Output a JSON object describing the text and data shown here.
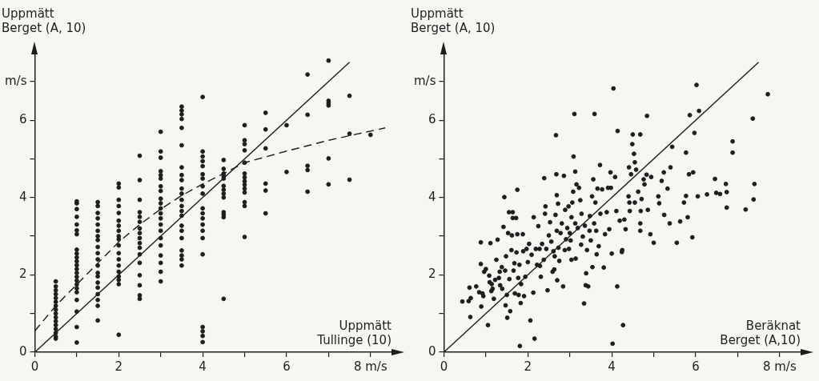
{
  "chart_data": [
    {
      "type": "scatter",
      "xlabel": "Uppmätt Tullinge (10)",
      "ylabel": "Uppmätt Berget (A, 10)",
      "xlim": [
        0,
        8.5
      ],
      "ylim": [
        0,
        7.7
      ],
      "xticks": [
        0,
        {
          "value": 1,
          "label": null
        },
        2,
        {
          "value": 3,
          "label": null
        },
        4,
        {
          "value": 5,
          "label": null
        },
        6,
        {
          "value": 7,
          "label": null
        },
        {
          "value": 8,
          "label": "8 m/s"
        }
      ],
      "yticks": [
        0,
        {
          "value": 1,
          "label": null
        },
        2,
        {
          "value": 3,
          "label": null
        },
        4,
        {
          "value": 5,
          "label": null
        },
        6,
        {
          "value": 7,
          "label": "m/s"
        }
      ],
      "series": [
        {
          "type": "scatter",
          "color": "#1e1e1e",
          "marker": "circle",
          "x": [
            0.5,
            0.5,
            0.5,
            0.5,
            0.5,
            0.5,
            0.5,
            0.5,
            0.5,
            0.5,
            0.5,
            0.5,
            0.5,
            0.5,
            0.5,
            0.5,
            1,
            1,
            1,
            1,
            1,
            1,
            1,
            1,
            1,
            1,
            1,
            1,
            1,
            1,
            1,
            1,
            1,
            1,
            1,
            1,
            1,
            1,
            1,
            1.5,
            1.5,
            1.5,
            1.5,
            1.5,
            1.5,
            1.5,
            1.5,
            1.5,
            1.5,
            1.5,
            1.5,
            1.5,
            1.5,
            1.5,
            1.5,
            1.5,
            1.5,
            1.5,
            1.5,
            2,
            2,
            2,
            2,
            2,
            2,
            2,
            2,
            2,
            2,
            2,
            2,
            2,
            2,
            2,
            2,
            2,
            2,
            2,
            2.5,
            2.5,
            2.5,
            2.5,
            2.5,
            2.5,
            2.5,
            2.5,
            2.5,
            2.5,
            2.5,
            2.5,
            2.5,
            2.5,
            2.5,
            2.5,
            2.5,
            3,
            3,
            3,
            3,
            3,
            3,
            3,
            3,
            3,
            3,
            3,
            3,
            3,
            3,
            3,
            3,
            3,
            3,
            3,
            3,
            3,
            3.5,
            3.5,
            3.5,
            3.5,
            3.5,
            3.5,
            3.5,
            3.5,
            3.5,
            3.5,
            3.5,
            3.5,
            3.5,
            3.5,
            3.5,
            3.5,
            3.5,
            3.5,
            3.5,
            3.5,
            3.5,
            3.5,
            4,
            4,
            4,
            4,
            4,
            4,
            4,
            4,
            4,
            4,
            4,
            4,
            4,
            4,
            4,
            4,
            4,
            4,
            4,
            4,
            4.5,
            4.5,
            4.5,
            4.5,
            4.5,
            4.5,
            4.5,
            4.5,
            4.5,
            4.5,
            4.5,
            4.5,
            4.5,
            5,
            5,
            5,
            5,
            5,
            5,
            5,
            5,
            5,
            5,
            5,
            5,
            5,
            5,
            5.5,
            5.5,
            5.5,
            5.5,
            5.5,
            5.5,
            6,
            6,
            6.5,
            6.5,
            6.5,
            6.5,
            6.5,
            7,
            7,
            7,
            7,
            7,
            7,
            7.5,
            7.5,
            7.5,
            8
          ],
          "values": [
            1.83,
            1.7,
            1.6,
            1.5,
            1.4,
            1.3,
            1.2,
            1.1,
            1.0,
            0.9,
            0.8,
            0.7,
            0.6,
            0.5,
            0.4,
            0.35,
            3.9,
            3.85,
            3.7,
            3.5,
            3.3,
            3.15,
            3.05,
            2.65,
            2.55,
            2.45,
            2.35,
            2.25,
            2.15,
            2.05,
            1.95,
            1.85,
            1.75,
            1.65,
            1.55,
            1.35,
            1.05,
            0.65,
            0.25,
            3.88,
            3.78,
            3.6,
            3.46,
            3.3,
            3.14,
            3.0,
            2.9,
            2.72,
            2.56,
            2.4,
            2.24,
            2.05,
            1.96,
            1.8,
            1.67,
            1.5,
            1.35,
            1.2,
            0.82,
            4.36,
            4.26,
            3.94,
            3.78,
            3.6,
            3.4,
            3.27,
            3.14,
            3.0,
            2.92,
            2.76,
            2.56,
            2.4,
            2.24,
            2.08,
            1.96,
            1.87,
            1.76,
            0.45,
            5.08,
            4.45,
            3.94,
            3.62,
            3.5,
            3.37,
            3.2,
            3.08,
            2.95,
            2.82,
            2.7,
            2.53,
            2.31,
            1.99,
            1.73,
            1.47,
            1.38,
            5.7,
            5.19,
            5.03,
            4.68,
            4.58,
            4.49,
            4.29,
            4.17,
            3.97,
            3.85,
            3.72,
            3.59,
            3.46,
            3.3,
            3.14,
            2.95,
            2.76,
            2.5,
            2.31,
            2.08,
            1.83,
            6.35,
            6.25,
            6.15,
            6.03,
            5.8,
            5.35,
            4.78,
            4.58,
            4.45,
            4.23,
            4.1,
            3.94,
            3.78,
            3.65,
            3.53,
            3.27,
            3.14,
            2.95,
            2.63,
            2.5,
            2.4,
            2.24,
            6.6,
            5.19,
            5.06,
            4.94,
            4.81,
            4.6,
            4.49,
            4.29,
            4.1,
            3.72,
            3.59,
            3.46,
            3.3,
            3.14,
            2.95,
            2.53,
            0.65,
            0.54,
            0.42,
            0.26,
            4.97,
            4.74,
            4.62,
            4.55,
            4.49,
            4.3,
            4.2,
            4.1,
            4.0,
            3.62,
            3.56,
            3.49,
            1.38,
            5.87,
            5.48,
            5.38,
            5.22,
            4.9,
            4.62,
            4.52,
            4.42,
            4.33,
            4.23,
            4.13,
            3.88,
            3.78,
            2.98,
            6.19,
            5.76,
            5.27,
            4.36,
            4.18,
            3.59,
            5.87,
            4.66,
            7.18,
            6.14,
            4.82,
            4.71,
            4.15,
            7.54,
            6.5,
            6.44,
            6.38,
            5.01,
            4.34,
            6.63,
            5.65,
            4.46,
            5.62
          ]
        },
        {
          "type": "line",
          "color": "#1e1e1e",
          "line_style": "solid",
          "x": [
            0,
            7.5
          ],
          "values": [
            0,
            7.5
          ]
        },
        {
          "type": "line",
          "color": "#1e1e1e",
          "line_style": "dashed",
          "x": [
            0,
            0.5,
            1,
            1.5,
            2,
            2.5,
            3,
            3.5,
            4,
            4.5,
            5,
            6,
            7,
            8.35
          ],
          "values": [
            0.55,
            1.2,
            1.75,
            2.3,
            2.85,
            3.3,
            3.7,
            4.05,
            4.35,
            4.62,
            4.9,
            5.2,
            5.48,
            5.8
          ]
        }
      ]
    },
    {
      "type": "scatter",
      "xlabel": "Beräknat Berget (A,10)",
      "ylabel": "Uppmätt Berget (A, 10)",
      "xlim": [
        0,
        8.5
      ],
      "ylim": [
        0,
        7.7
      ],
      "xticks": [
        0,
        {
          "value": 1,
          "label": null
        },
        2,
        {
          "value": 3,
          "label": null
        },
        4,
        {
          "value": 5,
          "label": null
        },
        6,
        {
          "value": 7,
          "label": null
        },
        {
          "value": 8,
          "label": "8 m/s"
        }
      ],
      "yticks": [
        0,
        {
          "value": 1,
          "label": null
        },
        2,
        {
          "value": 3,
          "label": null
        },
        4,
        {
          "value": 5,
          "label": null
        },
        6,
        {
          "value": 7,
          "label": "m/s"
        }
      ],
      "series": [
        {
          "type": "scatter",
          "color": "#1e1e1e",
          "marker": "circle",
          "x": [
            0.44,
            0.59,
            0.61,
            0.63,
            0.64,
            0.77,
            0.84,
            0.88,
            0.88,
            0.89,
            0.92,
            0.94,
            0.96,
            1.0,
            1.05,
            1.08,
            1.09,
            1.11,
            1.13,
            1.14,
            1.16,
            1.19,
            1.22,
            1.25,
            1.28,
            1.31,
            1.33,
            1.34,
            1.38,
            1.39,
            1.42,
            1.44,
            1.46,
            1.47,
            1.48,
            1.5,
            1.51,
            1.53,
            1.55,
            1.56,
            1.58,
            1.61,
            1.62,
            1.64,
            1.64,
            1.66,
            1.68,
            1.69,
            1.72,
            1.73,
            1.75,
            1.75,
            1.77,
            1.78,
            1.8,
            1.81,
            1.83,
            1.84,
            1.88,
            1.89,
            1.91,
            1.94,
            1.97,
            2.0,
            2.03,
            2.06,
            2.09,
            2.13,
            2.14,
            2.16,
            2.19,
            2.22,
            2.25,
            2.28,
            2.29,
            2.31,
            2.34,
            2.38,
            2.39,
            2.41,
            2.42,
            2.44,
            2.47,
            2.5,
            2.53,
            2.56,
            2.59,
            2.61,
            2.63,
            2.64,
            2.66,
            2.67,
            2.68,
            2.69,
            2.69,
            2.7,
            2.72,
            2.73,
            2.75,
            2.78,
            2.81,
            2.84,
            2.86,
            2.88,
            2.89,
            2.91,
            2.94,
            2.97,
            2.98,
            3.0,
            3.02,
            3.04,
            3.04,
            3.06,
            3.08,
            3.09,
            3.11,
            3.13,
            3.13,
            3.14,
            3.16,
            3.19,
            3.22,
            3.25,
            3.27,
            3.28,
            3.31,
            3.34,
            3.36,
            3.38,
            3.39,
            3.41,
            3.44,
            3.47,
            3.48,
            3.5,
            3.53,
            3.54,
            3.56,
            3.58,
            3.59,
            3.61,
            3.63,
            3.64,
            3.66,
            3.69,
            3.72,
            3.73,
            3.77,
            3.81,
            3.84,
            3.88,
            3.91,
            3.94,
            3.97,
            3.98,
            4.0,
            4.02,
            4.04,
            4.08,
            4.11,
            4.13,
            4.14,
            4.19,
            4.25,
            4.27,
            4.41,
            4.42,
            4.24,
            4.3,
            4.33,
            4.4,
            4.43,
            4.46,
            4.49,
            4.5,
            4.53,
            4.55,
            4.55,
            4.58,
            4.68,
            4.63,
            4.68,
            4.68,
            4.69,
            4.71,
            4.76,
            4.78,
            4.83,
            4.84,
            4.86,
            4.92,
            4.94,
            5.0,
            5.11,
            5.13,
            5.19,
            5.24,
            5.25,
            5.33,
            5.38,
            5.4,
            5.44,
            5.55,
            5.63,
            5.72,
            5.77,
            5.77,
            5.81,
            5.84,
            5.86,
            5.92,
            5.94,
            5.97,
            6.02,
            6.05,
            6.08,
            6.27,
            6.46,
            6.49,
            6.58,
            6.72,
            6.74,
            6.74,
            6.88,
            6.88,
            7.19,
            7.36,
            7.38,
            7.4,
            7.72
          ],
          "values": [
            1.31,
            1.32,
            1.67,
            0.91,
            1.4,
            1.7,
            1.55,
            2.28,
            2.84,
            1.18,
            1.52,
            1.45,
            2.08,
            2.15,
            0.7,
            1.98,
            1.81,
            2.82,
            1.58,
            1.76,
            1.64,
            1.38,
            1.87,
            2.39,
            2.91,
            1.92,
            2.08,
            1.73,
            2.2,
            1.64,
            3.24,
            4.01,
            2.11,
            1.21,
            2.48,
            1.48,
            0.89,
            3.08,
            3.62,
            1.89,
            1.06,
            2.64,
            3.02,
            3.47,
            3.62,
            2.11,
            2.3,
            1.52,
            3.47,
            2.58,
            3.05,
            4.2,
            1.92,
            1.48,
            2.26,
            0.16,
            1.27,
            1.76,
            3.05,
            2.61,
            1.45,
            1.95,
            2.67,
            2.33,
            2.8,
            0.82,
            2.52,
            1.54,
            3.49,
            0.35,
            2.67,
            2.26,
            3.26,
            2.67,
            2.23,
            1.95,
            2.8,
            2.39,
            4.5,
            3.58,
            3.77,
            2.67,
            1.6,
            3.02,
            3.36,
            2.86,
            2.08,
            2.61,
            2.14,
            2.48,
            3.55,
            5.61,
            4.6,
            4.06,
            3.14,
            1.86,
            3.84,
            2.7,
            2.36,
            3.08,
            3.33,
            1.7,
            4.56,
            2.64,
            3.68,
            2.92,
            3.21,
            3.77,
            2.67,
            3.08,
            2.89,
            3.49,
            2.39,
            3.87,
            4.15,
            5.06,
            6.16,
            4.67,
            3.33,
            2.42,
            4.34,
            3.21,
            4.25,
            3.93,
            2.78,
            3.58,
            2.99,
            1.26,
            3.27,
            1.73,
            2.04,
            2.64,
            1.7,
            3.14,
            3.52,
            2.89,
            4.03,
            2.2,
            4.47,
            3.33,
            6.16,
            3.87,
            3.14,
            2.53,
            4.23,
            2.74,
            4.84,
            3.58,
            4.21,
            2.19,
            3.05,
            3.62,
            4.25,
            3.18,
            4.65,
            4.25,
            2.55,
            0.22,
            6.82,
            4.53,
            3.65,
            1.7,
            5.72,
            3.4,
            2.64,
            0.7,
            4.78,
            3.87,
            2.59,
            3.43,
            3.18,
            4.03,
            3.65,
            4.6,
            5.38,
            5.63,
            5.13,
            4.91,
            3.87,
            4.72,
            5.63,
            4.15,
            3.33,
            3.14,
            3.65,
            3.96,
            4.47,
            4.34,
            4.59,
            6.11,
            3.68,
            3.05,
            4.53,
            2.83,
            4.03,
            3.85,
            4.43,
            4.65,
            3.55,
            4.23,
            3.33,
            4.78,
            5.31,
            2.83,
            3.38,
            3.87,
            5.16,
            4.04,
            3.49,
            4.6,
            6.13,
            2.97,
            4.65,
            5.67,
            6.91,
            4.03,
            6.24,
            4.08,
            4.48,
            4.12,
            4.09,
            4.35,
            4.14,
            3.74,
            5.45,
            5.16,
            3.69,
            6.04,
            3.95,
            4.35,
            6.67
          ]
        },
        {
          "type": "line",
          "color": "#1e1e1e",
          "line_style": "solid",
          "x": [
            0,
            7.5
          ],
          "values": [
            0,
            7.5
          ]
        }
      ]
    }
  ]
}
